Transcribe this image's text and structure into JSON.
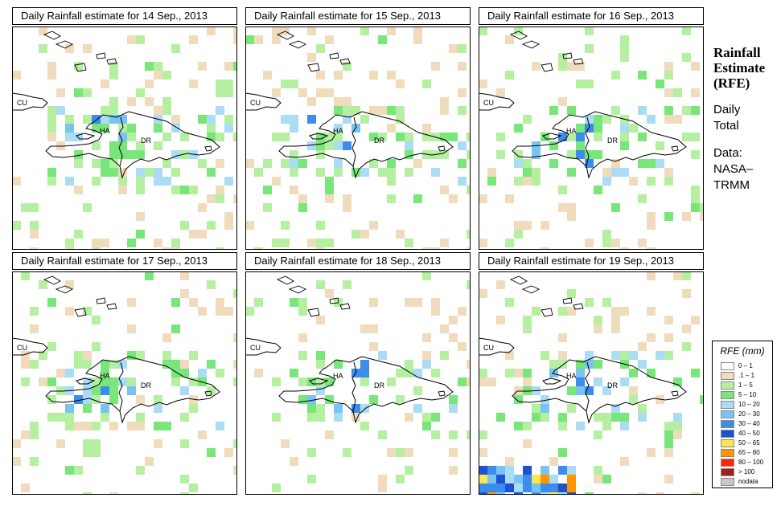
{
  "panels": [
    {
      "title": "Daily Rainfall estimate for  14 Sep., 2013",
      "seed": 14,
      "density": 0.09
    },
    {
      "title": "Daily Rainfall estimate for  15 Sep., 2013",
      "seed": 15,
      "density": 0.07
    },
    {
      "title": "Daily Rainfall estimate for  16 Sep., 2013",
      "seed": 16,
      "density": 0.06
    },
    {
      "title": "Daily Rainfall estimate for  17 Sep., 2013",
      "seed": 17,
      "density": 0.05
    },
    {
      "title": "Daily Rainfall estimate for  18 Sep., 2013",
      "seed": 18,
      "density": 0.05
    },
    {
      "title": "Daily Rainfall estimate for  19 Sep., 2013",
      "seed": 19,
      "density": 0.07
    }
  ],
  "map_labels": {
    "cuba": "CU",
    "haiti": "HA",
    "dr": "DR"
  },
  "sidebar": {
    "title_lines": [
      "Rainfall",
      "Estimate",
      "(RFE)"
    ],
    "period_lines": [
      "Daily",
      "Total"
    ],
    "source_lines": [
      "Data:",
      "NASA–",
      "TRMM"
    ]
  },
  "legend": {
    "title": "RFE (mm)",
    "items": [
      {
        "label": "0 – 1",
        "color": "#ffffff"
      },
      {
        "label": ".1 – 1",
        "color": "#f0dcbc"
      },
      {
        "label": "1 – 5",
        "color": "#b4f0a0"
      },
      {
        "label": "5 – 10",
        "color": "#78e678"
      },
      {
        "label": "10 – 20",
        "color": "#aadcf5"
      },
      {
        "label": "20 – 30",
        "color": "#78c3f0"
      },
      {
        "label": "30 – 40",
        "color": "#3c8ceb"
      },
      {
        "label": "40 – 50",
        "color": "#1e50d2"
      },
      {
        "label": "50 – 65",
        "color": "#ffe650"
      },
      {
        "label": "65 – 80",
        "color": "#ff9600"
      },
      {
        "label": "80 – 100",
        "color": "#ff2800"
      },
      {
        "label": "> 100",
        "color": "#a01e1e"
      },
      {
        "label": "nodata",
        "color": "#c8c8c8"
      }
    ]
  }
}
